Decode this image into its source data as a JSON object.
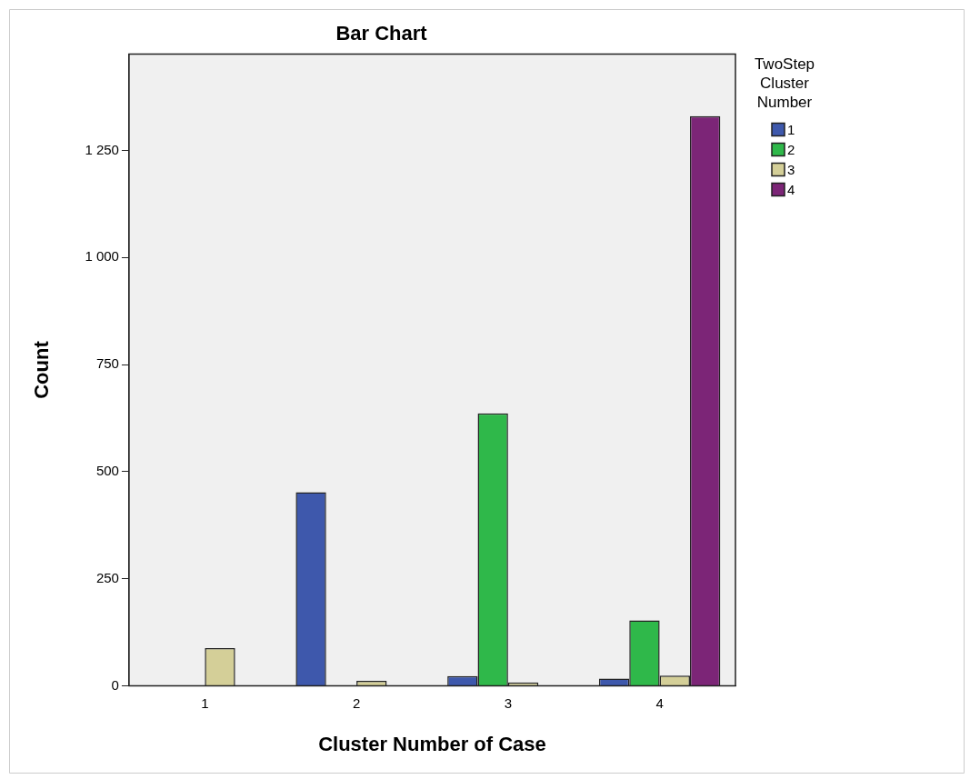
{
  "chart_data": {
    "type": "bar",
    "title": "Bar Chart",
    "xlabel": "Cluster Number of Case",
    "ylabel": "Count",
    "legend_title": "TwoStep Cluster Number",
    "categories": [
      "1",
      "2",
      "3",
      "4"
    ],
    "series": [
      {
        "name": "1",
        "color": "#3e58ac",
        "values": [
          null,
          452,
          23,
          17
        ]
      },
      {
        "name": "2",
        "color": "#2fb84a",
        "values": [
          null,
          null,
          636,
          153
        ]
      },
      {
        "name": "3",
        "color": "#d4cf98",
        "values": [
          88,
          12,
          8,
          24
        ]
      },
      {
        "name": "4",
        "color": "#7c2577",
        "values": [
          null,
          null,
          null,
          1330
        ]
      }
    ],
    "ylim": [
      0,
      1475
    ],
    "yticks": [
      0,
      250,
      500,
      750,
      {
        "value": 1000,
        "label": "1 000"
      },
      {
        "value": 1250,
        "label": "1 250"
      }
    ],
    "grid": false,
    "legend": "top right"
  }
}
